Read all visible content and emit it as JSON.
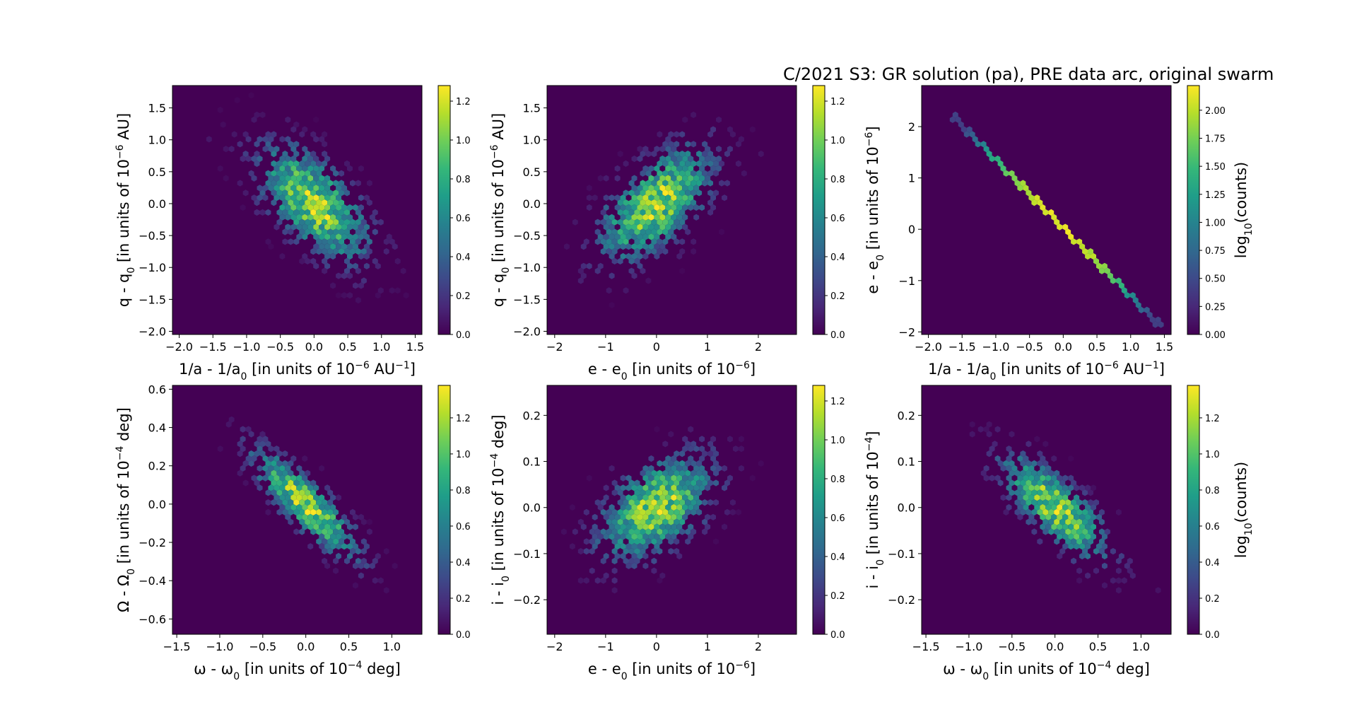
{
  "title": "C/2021 S3: GR solution (pa), PRE data arc, original swarm",
  "colors": {
    "background": "#440154",
    "colormap": [
      "#440154",
      "#482878",
      "#3e4989",
      "#31688e",
      "#26828e",
      "#1f9e89",
      "#35b779",
      "#6ece58",
      "#b5de2b",
      "#fde725"
    ]
  },
  "chart_data": [
    {
      "type": "heatmap",
      "shape": "hexbin",
      "xlabel": [
        "1/a - 1/a",
        "0",
        " [in units of 10",
        "−6",
        " AU",
        "−1",
        "]"
      ],
      "ylabel": [
        "q - q",
        "0",
        " [in units of 10",
        "−6",
        " AU]"
      ],
      "xlim": [
        -2.1,
        1.6
      ],
      "ylim": [
        -2.05,
        1.85
      ],
      "xticks": [
        "−2.0",
        "−1.5",
        "−1.0",
        "−0.5",
        "0.0",
        "0.5",
        "1.0",
        "1.5"
      ],
      "xtick_values": [
        -2.0,
        -1.5,
        -1.0,
        -0.5,
        0.0,
        0.5,
        1.0,
        1.5
      ],
      "yticks": [
        "−2.0",
        "−1.5",
        "−1.0",
        "−0.5",
        "0.0",
        "0.5",
        "1.0",
        "1.5"
      ],
      "ytick_values": [
        -2.0,
        -1.5,
        -1.0,
        -0.5,
        0.0,
        0.5,
        1.0,
        1.5
      ],
      "distribution": {
        "center": [
          0.0,
          0.0
        ],
        "sigma_x": 0.55,
        "sigma_y": 0.6,
        "correlation": -0.6
      },
      "colorbar": {
        "min": 0.0,
        "max": 1.28,
        "ticks": [
          "0.0",
          "0.2",
          "0.4",
          "0.6",
          "0.8",
          "1.0",
          "1.2"
        ],
        "tick_values": [
          0.0,
          0.2,
          0.4,
          0.6,
          0.8,
          1.0,
          1.2
        ],
        "label": []
      }
    },
    {
      "type": "heatmap",
      "shape": "hexbin",
      "xlabel": [
        "e - e",
        "0",
        " [in units of 10",
        "−6",
        "]"
      ],
      "ylabel": [
        "q - q",
        "0",
        " [in units of 10",
        "−6",
        " AU]"
      ],
      "xlim": [
        -2.15,
        2.75
      ],
      "ylim": [
        -2.05,
        1.85
      ],
      "xticks": [
        "−2",
        "−1",
        "0",
        "1",
        "2"
      ],
      "xtick_values": [
        -2,
        -1,
        0,
        1,
        2
      ],
      "yticks": [
        "−2.0",
        "−1.5",
        "−1.0",
        "−0.5",
        "0.0",
        "0.5",
        "1.0",
        "1.5"
      ],
      "ytick_values": [
        -2.0,
        -1.5,
        -1.0,
        -0.5,
        0.0,
        0.5,
        1.0,
        1.5
      ],
      "distribution": {
        "center": [
          0.0,
          0.0
        ],
        "sigma_x": 0.75,
        "sigma_y": 0.6,
        "correlation": 0.6
      },
      "colorbar": {
        "min": 0.0,
        "max": 1.28,
        "ticks": [
          "0.0",
          "0.2",
          "0.4",
          "0.6",
          "0.8",
          "1.0",
          "1.2"
        ],
        "tick_values": [
          0.0,
          0.2,
          0.4,
          0.6,
          0.8,
          1.0,
          1.2
        ],
        "label": []
      }
    },
    {
      "type": "heatmap",
      "shape": "hexbin",
      "xlabel": [
        "1/a - 1/a",
        "0",
        " [in units of 10",
        "−6",
        " AU",
        "−1",
        "]"
      ],
      "ylabel": [
        "e - e",
        "0",
        " [in units of 10",
        "−6",
        "]"
      ],
      "xlim": [
        -2.1,
        1.6
      ],
      "ylim": [
        -2.05,
        2.8
      ],
      "xticks": [
        "−2.0",
        "−1.5",
        "−1.0",
        "−0.5",
        "0.0",
        "0.5",
        "1.0",
        "1.5"
      ],
      "xtick_values": [
        -2.0,
        -1.5,
        -1.0,
        -0.5,
        0.0,
        0.5,
        1.0,
        1.5
      ],
      "yticks": [
        "−2",
        "−1",
        "0",
        "1",
        "2"
      ],
      "ytick_values": [
        -2,
        -1,
        0,
        1,
        2
      ],
      "distribution": {
        "line": {
          "from": [
            -1.6,
            2.15
          ],
          "to": [
            1.45,
            -1.9
          ]
        },
        "peak": 2.2,
        "width": 0.7
      },
      "colorbar": {
        "min": 0.0,
        "max": 2.22,
        "ticks": [
          "0.00",
          "0.25",
          "0.50",
          "0.75",
          "1.00",
          "1.25",
          "1.50",
          "1.75",
          "2.00"
        ],
        "tick_values": [
          0.0,
          0.25,
          0.5,
          0.75,
          1.0,
          1.25,
          1.5,
          1.75,
          2.0
        ],
        "label": [
          "log",
          "10",
          "(counts)"
        ]
      }
    },
    {
      "type": "heatmap",
      "shape": "hexbin",
      "xlabel": [
        "ω - ω",
        "0",
        " [in units of 10",
        "−4",
        " deg]"
      ],
      "ylabel": [
        "Ω - Ω",
        "0",
        " [in units of 10",
        "−4",
        " deg]"
      ],
      "xlim": [
        -1.55,
        1.35
      ],
      "ylim": [
        -0.68,
        0.62
      ],
      "xticks": [
        "−1.5",
        "−1.0",
        "−0.5",
        "0.0",
        "0.5",
        "1.0"
      ],
      "xtick_values": [
        -1.5,
        -1.0,
        -0.5,
        0.0,
        0.5,
        1.0
      ],
      "yticks": [
        "−0.6",
        "−0.4",
        "−0.2",
        "0.0",
        "0.2",
        "0.4",
        "0.6"
      ],
      "ytick_values": [
        -0.6,
        -0.4,
        -0.2,
        0.0,
        0.2,
        0.4,
        0.6
      ],
      "distribution": {
        "center": [
          0.0,
          0.0
        ],
        "sigma_x": 0.42,
        "sigma_y": 0.19,
        "correlation": -0.85
      },
      "colorbar": {
        "min": 0.0,
        "max": 1.38,
        "ticks": [
          "0.0",
          "0.2",
          "0.4",
          "0.6",
          "0.8",
          "1.0",
          "1.2"
        ],
        "tick_values": [
          0.0,
          0.2,
          0.4,
          0.6,
          0.8,
          1.0,
          1.2
        ],
        "label": []
      }
    },
    {
      "type": "heatmap",
      "shape": "hexbin",
      "xlabel": [
        "e - e",
        "0",
        " [in units of 10",
        "−6",
        "]"
      ],
      "ylabel": [
        "i - i",
        "0",
        " [in units of 10",
        "−4",
        " deg]"
      ],
      "xlim": [
        -2.15,
        2.75
      ],
      "ylim": [
        -0.275,
        0.265
      ],
      "xticks": [
        "−2",
        "−1",
        "0",
        "1",
        "2"
      ],
      "xtick_values": [
        -2,
        -1,
        0,
        1,
        2
      ],
      "yticks": [
        "−0.2",
        "−0.1",
        "0.0",
        "0.1",
        "0.2"
      ],
      "ytick_values": [
        -0.2,
        -0.1,
        0.0,
        0.1,
        0.2
      ],
      "distribution": {
        "center": [
          0.0,
          0.0
        ],
        "sigma_x": 0.75,
        "sigma_y": 0.075,
        "correlation": 0.5
      },
      "colorbar": {
        "min": 0.0,
        "max": 1.28,
        "ticks": [
          "0.0",
          "0.2",
          "0.4",
          "0.6",
          "0.8",
          "1.0",
          "1.2"
        ],
        "tick_values": [
          0.0,
          0.2,
          0.4,
          0.6,
          0.8,
          1.0,
          1.2
        ],
        "label": []
      }
    },
    {
      "type": "heatmap",
      "shape": "hexbin",
      "xlabel": [
        "ω - ω",
        "0",
        " [in units of 10",
        "−4",
        " deg]"
      ],
      "ylabel": [
        "i - i",
        "0",
        " [in units of 10",
        "−4",
        "]"
      ],
      "xlim": [
        -1.55,
        1.35
      ],
      "ylim": [
        -0.275,
        0.265
      ],
      "xticks": [
        "−1.5",
        "−1.0",
        "−0.5",
        "0.0",
        "0.5",
        "1.0"
      ],
      "xtick_values": [
        -1.5,
        -1.0,
        -0.5,
        0.0,
        0.5,
        1.0
      ],
      "yticks": [
        "−0.2",
        "−0.1",
        "0.0",
        "0.1",
        "0.2"
      ],
      "ytick_values": [
        -0.2,
        -0.1,
        0.0,
        0.1,
        0.2
      ],
      "distribution": {
        "center": [
          0.0,
          0.0
        ],
        "sigma_x": 0.42,
        "sigma_y": 0.075,
        "correlation": -0.75
      },
      "colorbar": {
        "min": 0.0,
        "max": 1.38,
        "ticks": [
          "0.0",
          "0.2",
          "0.4",
          "0.6",
          "0.8",
          "1.0",
          "1.2"
        ],
        "tick_values": [
          0.0,
          0.2,
          0.4,
          0.6,
          0.8,
          1.0,
          1.2
        ],
        "label": [
          "log",
          "10",
          "(counts)"
        ]
      }
    }
  ]
}
